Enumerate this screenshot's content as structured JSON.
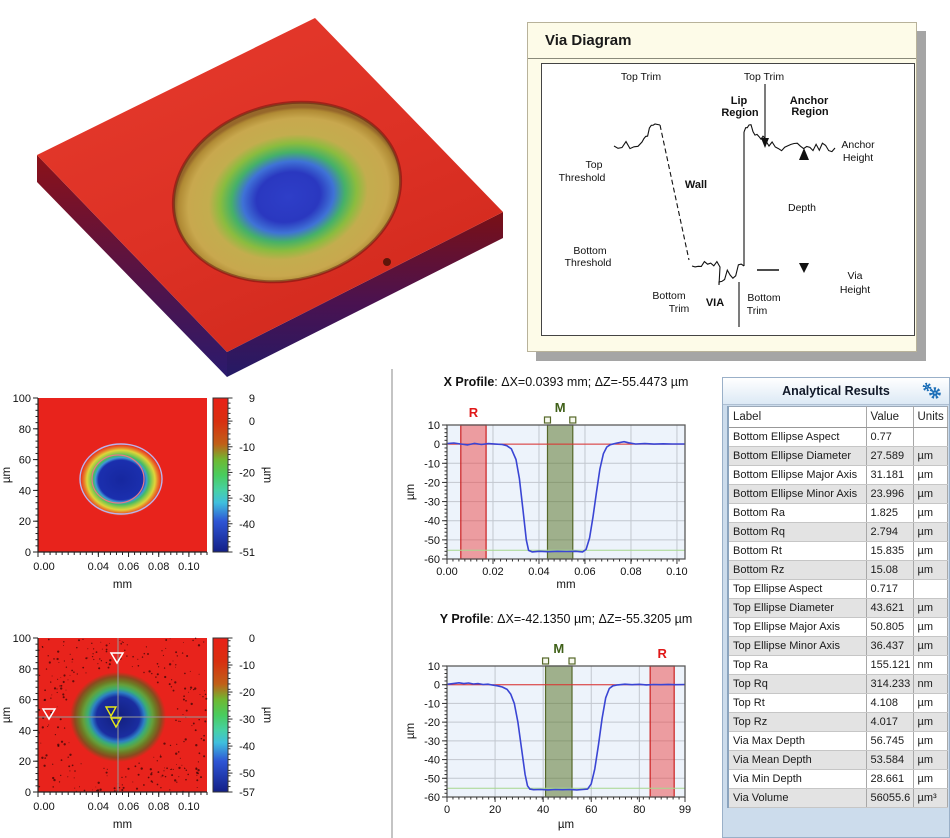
{
  "via_diagram": {
    "title": "Via Diagram",
    "labels": {
      "top_trim_left": "Top Trim",
      "top_trim_right": "Top Trim",
      "lip_region_line1": "Lip",
      "lip_region_line2": "Region",
      "anchor_region_line1": "Anchor",
      "anchor_region_line2": "Region",
      "top_threshold_line1": "Top",
      "top_threshold_line2": "Threshold",
      "wall": "Wall",
      "bottom_threshold_line1": "Bottom",
      "bottom_threshold_line2": "Threshold",
      "bottom_trim_left_line1": "Bottom",
      "bottom_trim_left_line2": "Trim",
      "via": "VIA",
      "bottom_trim_right_line1": "Bottom",
      "bottom_trim_right_line2": "Trim",
      "depth": "Depth",
      "anchor_height_line1": "Anchor",
      "anchor_height_line2": "Height",
      "via_height_line1": "Via",
      "via_height_line2": "Height"
    }
  },
  "results": {
    "title": "Analytical Results",
    "gear_icon": "settings-gears-icon",
    "columns": [
      "Label",
      "Value",
      "Units"
    ],
    "rows": [
      [
        "Bottom Ellipse Aspect",
        "0.77",
        ""
      ],
      [
        "Bottom Ellipse Diameter",
        "27.589",
        "µm"
      ],
      [
        "Bottom Ellipse Major Axis",
        "31.181",
        "µm"
      ],
      [
        "Bottom Ellipse Minor Axis",
        "23.996",
        "µm"
      ],
      [
        "Bottom Ra",
        "1.825",
        "µm"
      ],
      [
        "Bottom Rq",
        "2.794",
        "µm"
      ],
      [
        "Bottom Rt",
        "15.835",
        "µm"
      ],
      [
        "Bottom Rz",
        "15.08",
        "µm"
      ],
      [
        "Top Ellipse Aspect",
        "0.717",
        ""
      ],
      [
        "Top Ellipse Diameter",
        "43.621",
        "µm"
      ],
      [
        "Top Ellipse Major Axis",
        "50.805",
        "µm"
      ],
      [
        "Top Ellipse Minor Axis",
        "36.437",
        "µm"
      ],
      [
        "Top Ra",
        "155.121",
        "nm"
      ],
      [
        "Top Rq",
        "314.233",
        "nm"
      ],
      [
        "Top Rt",
        "4.108",
        "µm"
      ],
      [
        "Top Rz",
        "4.017",
        "µm"
      ],
      [
        "Via Max Depth",
        "56.745",
        "µm"
      ],
      [
        "Via Mean Depth",
        "53.584",
        "µm"
      ],
      [
        "Via Min Depth",
        "28.661",
        "µm"
      ],
      [
        "Via Volume",
        "56055.6",
        "µm³"
      ]
    ]
  },
  "chart_data": [
    {
      "id": "top-heatmap",
      "type": "heatmap",
      "xlabel": "mm",
      "ylabel": "µm",
      "x_tick_vals": [
        0,
        0.04,
        0.06,
        0.08,
        0.1
      ],
      "x_tick_labels": [
        "0.00",
        "0.04",
        "0.06",
        "0.08",
        "0.10"
      ],
      "x_range": [
        0,
        0.112
      ],
      "y_tick_vals": [
        0,
        20,
        40,
        60,
        80,
        100
      ],
      "y_range": [
        0,
        100
      ],
      "colorbar": {
        "label": "µm",
        "tick_vals": [
          9,
          0,
          -10,
          -20,
          -30,
          -40,
          -51
        ],
        "max": 9,
        "min": -51
      },
      "feature": "flat red field near 0 µm with circular via centered near x=0.048 mm y=46 µm reaching -51 µm; lavender outer contour (top ellipse) and pink inner contour (bottom ellipse)"
    },
    {
      "id": "bottom-heatmap",
      "type": "heatmap",
      "xlabel": "mm",
      "ylabel": "µm",
      "x_tick_vals": [
        0,
        0.04,
        0.06,
        0.08,
        0.1
      ],
      "x_tick_labels": [
        "0.00",
        "0.04",
        "0.06",
        "0.08",
        "0.10"
      ],
      "x_range": [
        0,
        0.112
      ],
      "y_tick_vals": [
        0,
        20,
        40,
        60,
        80,
        100
      ],
      "y_range": [
        0,
        100
      ],
      "colorbar": {
        "label": "µm",
        "tick_vals": [
          0,
          -10,
          -20,
          -30,
          -40,
          -50,
          -57
        ],
        "max": 0,
        "min": -57
      },
      "feature": "speckled red field with via at -57 µm; gray crosshair cursors at x≈0.047 mm and y≈47 µm; white triangle cursors at plot edges; two yellow triangle markers at via center"
    },
    {
      "id": "x-profile",
      "type": "line",
      "title_bold": "X Profile",
      "title_rest": ": ΔX=0.0393 mm; ΔZ=-55.4473 µm",
      "xlabel": "mm",
      "ylabel": "µm",
      "x_range": [
        0,
        0.1035
      ],
      "x_tick_vals": [
        0,
        0.02,
        0.04,
        0.06,
        0.08,
        0.1
      ],
      "x_tick_labels": [
        "0.00",
        "0.02",
        "0.04",
        "0.06",
        "0.08",
        "0.10"
      ],
      "y_range": [
        -60,
        10
      ],
      "y_tick_vals": [
        10,
        0,
        -10,
        -20,
        -30,
        -40,
        -50,
        -60
      ],
      "ref_lines": [
        {
          "y": 0,
          "color": "#e03030"
        },
        {
          "y": -55.4473,
          "color": "#a6d88e"
        }
      ],
      "regions": [
        {
          "label": "R",
          "x0": 0.006,
          "x1": 0.017,
          "fill": "rgba(235,70,70,0.5)",
          "edge": "#cc2020",
          "label_color": "#e01818",
          "handles": false
        },
        {
          "label": "M",
          "x0": 0.0437,
          "x1": 0.0547,
          "fill": "rgba(95,120,50,0.55)",
          "edge": "#56682a",
          "label_color": "#3f6018",
          "handles": true
        }
      ],
      "points": [
        [
          0,
          0.3
        ],
        [
          0.003,
          0.6
        ],
        [
          0.006,
          0.1
        ],
        [
          0.009,
          -0.4
        ],
        [
          0.012,
          0.4
        ],
        [
          0.015,
          -0.2
        ],
        [
          0.018,
          0.3
        ],
        [
          0.021,
          0
        ],
        [
          0.024,
          -0.2
        ],
        [
          0.026,
          -0.8
        ],
        [
          0.028,
          -2.5
        ],
        [
          0.03,
          -8
        ],
        [
          0.0315,
          -18
        ],
        [
          0.033,
          -34
        ],
        [
          0.0345,
          -50
        ],
        [
          0.0355,
          -55.5
        ],
        [
          0.037,
          -56.3
        ],
        [
          0.04,
          -56
        ],
        [
          0.044,
          -56.2
        ],
        [
          0.048,
          -56
        ],
        [
          0.052,
          -56.1
        ],
        [
          0.056,
          -56
        ],
        [
          0.059,
          -56.3
        ],
        [
          0.0605,
          -55
        ],
        [
          0.062,
          -49
        ],
        [
          0.0635,
          -38
        ],
        [
          0.065,
          -25
        ],
        [
          0.0665,
          -13
        ],
        [
          0.068,
          -5
        ],
        [
          0.0695,
          -1.5
        ],
        [
          0.071,
          -0.3
        ],
        [
          0.074,
          0.6
        ],
        [
          0.077,
          1.3
        ],
        [
          0.079,
          0.7
        ],
        [
          0.082,
          0.1
        ],
        [
          0.086,
          0.3
        ],
        [
          0.09,
          0
        ],
        [
          0.094,
          0.2
        ],
        [
          0.098,
          0.1
        ],
        [
          0.1035,
          0.1
        ]
      ]
    },
    {
      "id": "y-profile",
      "type": "line",
      "title_bold": "Y Profile",
      "title_rest": ": ΔX=-42.1350 µm; ΔZ=-55.3205 µm",
      "xlabel": "µm",
      "ylabel": "µm",
      "x_range": [
        0,
        99
      ],
      "x_tick_vals": [
        0,
        20,
        40,
        60,
        80,
        99
      ],
      "x_tick_labels": [
        "0",
        "20",
        "40",
        "60",
        "80",
        "99"
      ],
      "y_range": [
        -60,
        10
      ],
      "y_tick_vals": [
        10,
        0,
        -10,
        -20,
        -30,
        -40,
        -50,
        -60
      ],
      "ref_lines": [
        {
          "y": 0,
          "color": "#e03030"
        },
        {
          "y": -55.3205,
          "color": "#a6d88e"
        }
      ],
      "regions": [
        {
          "label": "M",
          "x0": 41,
          "x1": 52,
          "fill": "rgba(95,120,50,0.55)",
          "edge": "#56682a",
          "label_color": "#3f6018",
          "handles": true
        },
        {
          "label": "R",
          "x0": 84.5,
          "x1": 94.5,
          "fill": "rgba(235,70,70,0.5)",
          "edge": "#cc2020",
          "label_color": "#e01818",
          "handles": false
        }
      ],
      "points": [
        [
          0,
          0.2
        ],
        [
          3,
          0.7
        ],
        [
          5,
          1
        ],
        [
          7,
          0.6
        ],
        [
          9,
          0.9
        ],
        [
          11,
          0.4
        ],
        [
          13,
          0.6
        ],
        [
          15,
          0.1
        ],
        [
          17,
          0.3
        ],
        [
          19,
          -0.2
        ],
        [
          21,
          -0.6
        ],
        [
          23,
          -1.2
        ],
        [
          25,
          -2.5
        ],
        [
          26.5,
          -5
        ],
        [
          28,
          -10
        ],
        [
          29.5,
          -20
        ],
        [
          31,
          -34
        ],
        [
          32.5,
          -48
        ],
        [
          33.5,
          -54
        ],
        [
          34.5,
          -55.8
        ],
        [
          36,
          -56.1
        ],
        [
          39,
          -56
        ],
        [
          42,
          -56.2
        ],
        [
          45,
          -56
        ],
        [
          48,
          -56.1
        ],
        [
          51,
          -56
        ],
        [
          54,
          -56.2
        ],
        [
          56.5,
          -56
        ],
        [
          58.5,
          -55.8
        ],
        [
          60,
          -53
        ],
        [
          61.5,
          -45
        ],
        [
          63,
          -32
        ],
        [
          64.5,
          -18
        ],
        [
          66,
          -7
        ],
        [
          67.5,
          -2
        ],
        [
          69,
          -0.6
        ],
        [
          71,
          -0.1
        ],
        [
          74,
          0.3
        ],
        [
          77,
          0
        ],
        [
          80,
          0.2
        ],
        [
          83,
          -0.1
        ],
        [
          86,
          0.1
        ],
        [
          89,
          0
        ],
        [
          92,
          0.15
        ],
        [
          95,
          0
        ],
        [
          99,
          0.1
        ]
      ]
    }
  ]
}
